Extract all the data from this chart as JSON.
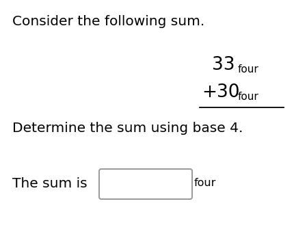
{
  "bg_color": "#ffffff",
  "line1_text": "Consider the following sum.",
  "line1_fontsize": 14.5,
  "num1_main": "33",
  "num1_sub": "four",
  "num1_main_fontsize": 19,
  "num1_sub_fontsize": 11,
  "num2_main": "+30",
  "num2_sub": "four",
  "num2_main_fontsize": 19,
  "num2_sub_fontsize": 11,
  "line_color": "#000000",
  "line_width": 1.3,
  "det_text": "Determine the sum using base 4.",
  "det_fontsize": 14.5,
  "sum_label": "The sum is",
  "sum_label_fontsize": 14.5,
  "box_edge_color": "#999999",
  "four_label": "four",
  "four_label_fontsize": 11.5
}
